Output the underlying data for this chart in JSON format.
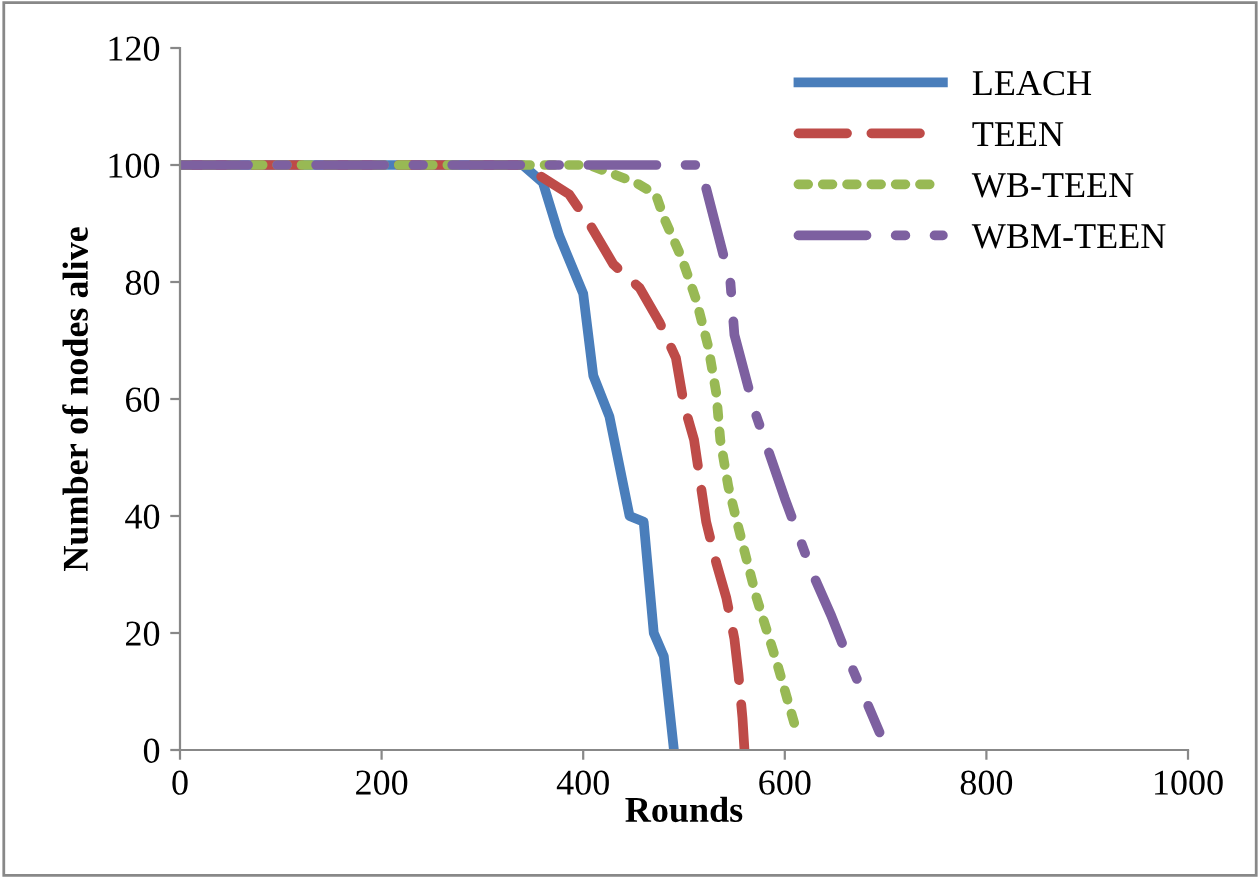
{
  "chart_data": {
    "type": "line",
    "xlabel": "Rounds",
    "ylabel": "Number of nodes alive",
    "xlim": [
      0,
      1000
    ],
    "xticks": [
      0,
      200,
      400,
      600,
      800,
      1000
    ],
    "ylim": [
      0,
      120
    ],
    "yticks": [
      0,
      20,
      40,
      60,
      80,
      100,
      120
    ],
    "grid": false,
    "legend": "top right",
    "marker": "none",
    "series": [
      {
        "name": "LEACH",
        "color": "#4a7ebb",
        "line_style": "solid",
        "x": [
          0,
          340,
          360,
          376,
          400,
          410,
          426,
          446,
          460,
          470,
          480,
          490
        ],
        "values": [
          100,
          100,
          97,
          88,
          78,
          64,
          57,
          40,
          39,
          20,
          16,
          0
        ]
      },
      {
        "name": "TEEN",
        "color": "#be4b48",
        "line_style": "dashed",
        "x": [
          0,
          340,
          386,
          406,
          430,
          456,
          476,
          492,
          500,
          510,
          522,
          532,
          542,
          550,
          554,
          558,
          560
        ],
        "values": [
          100,
          100,
          95,
          90,
          83,
          79,
          73,
          67,
          59,
          53,
          39,
          32,
          26,
          19,
          13,
          5.5,
          0
        ]
      },
      {
        "name": "WB-TEEN",
        "color": "#98b954",
        "line_style": "dotted",
        "x": [
          0,
          406,
          452,
          472,
          480,
          498,
          512,
          524,
          532,
          536,
          544,
          554,
          572,
          592,
          612
        ],
        "values": [
          100,
          100,
          97,
          95,
          91,
          84,
          77,
          69,
          61,
          53,
          45,
          38,
          26,
          15,
          3
        ]
      },
      {
        "name": "WBM-TEEN",
        "color": "#7d60a0",
        "line_style": "dashdot",
        "x": [
          0,
          516,
          534,
          546,
          550,
          570,
          584,
          600,
          628,
          646,
          662,
          694
        ],
        "values": [
          100,
          100,
          88,
          80,
          71,
          58,
          51,
          43,
          30,
          23,
          16,
          3
        ]
      }
    ]
  }
}
